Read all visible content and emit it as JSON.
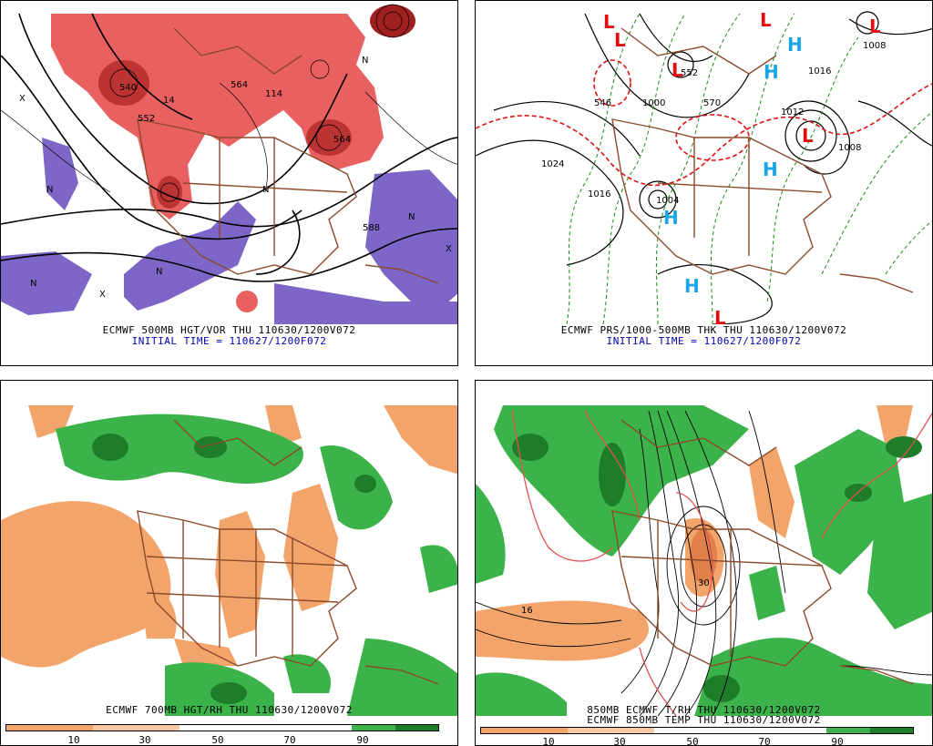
{
  "panels": {
    "top_left": {
      "caption": "ECMWF 500MB HGT/VOR THU 110630/1200V072",
      "initial": "INITIAL TIME = 110627/1200F072",
      "labels": [
        "540",
        "552",
        "564",
        "564",
        "588",
        "114",
        "14",
        "N",
        "N",
        "N",
        "X",
        "X",
        "X",
        "N",
        "N",
        "N"
      ]
    },
    "top_right": {
      "caption": "ECMWF PRS/1000-500MB THK THU 110630/1200V072",
      "initial": "INITIAL TIME = 110627/1200F072",
      "labels": [
        "1024",
        "1016",
        "1008",
        "1008",
        "1016",
        "1000",
        "1004",
        "552",
        "570",
        "546",
        "1012"
      ]
    },
    "bottom_left": {
      "caption": "ECMWF 700MB HGT/RH THU 110630/1200V072",
      "colorbar_ticks": [
        "10",
        "30",
        "50",
        "70",
        "90"
      ]
    },
    "bottom_right": {
      "caption": "850MB ECMWF T/RH THU 110630/1200V072",
      "caption2": "ECMWF 850MB TEMP THU 110630/1200V072",
      "colorbar_ticks": [
        "10",
        "30",
        "50",
        "70",
        "90"
      ],
      "labels": [
        "30",
        "16"
      ]
    }
  },
  "colors": {
    "vort_red": "#e86060",
    "vort_dark": "#b02828",
    "vort_purple": "#7d66c8",
    "rh_orange": "#f2a46a",
    "rh_green_light": "#3cb34a",
    "rh_green_dark": "#1e7d2a",
    "border_brown": "#8b4a2b",
    "contour_black": "#000000",
    "thk_green": "#1a8a1a",
    "thk_red": "#e01010",
    "high_blue": "#19a6e6",
    "low_red": "#e01010"
  },
  "symbols": {
    "L": "L",
    "H": "H"
  }
}
